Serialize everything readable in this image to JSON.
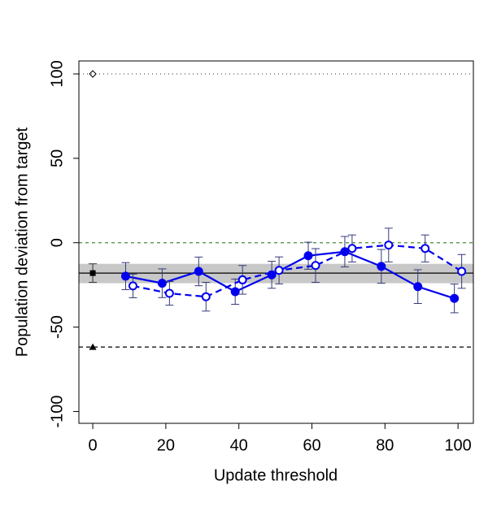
{
  "chart_data": {
    "type": "line",
    "xlabel": "Update threshold",
    "ylabel": "Population deviation from target",
    "xlim": [
      -3.8,
      104.2
    ],
    "ylim": [
      -107,
      107.7
    ],
    "xticks": [
      0,
      20,
      40,
      60,
      80,
      100
    ],
    "yticks": [
      -100,
      -50,
      0,
      50,
      100
    ],
    "series": [
      {
        "color": "#0000ee",
        "marker": "filled",
        "dash": "solid",
        "x": [
          9,
          19,
          29,
          39,
          49,
          59,
          69,
          79,
          89,
          99
        ],
        "values": [
          -19.8,
          -24,
          -17,
          -29,
          -19,
          -7.7,
          -5.3,
          -14,
          -26,
          -33
        ],
        "errors": [
          8,
          8.5,
          8.5,
          7.5,
          8,
          8,
          9,
          10,
          10,
          8.5
        ]
      },
      {
        "color": "#0000ee",
        "marker": "open",
        "dash": "dashed",
        "x": [
          11,
          21,
          31,
          41,
          51,
          61,
          71,
          81,
          91,
          101
        ],
        "values": [
          -25.6,
          -30,
          -32,
          -22,
          -16.4,
          -13.5,
          -3.4,
          -1.4,
          -3.4,
          -17
        ],
        "errors": [
          7,
          7,
          8.5,
          8.5,
          8,
          10,
          8,
          10,
          8,
          10
        ]
      }
    ],
    "band": [
      -24,
      -12.5
    ],
    "hlines": [
      {
        "value": 100,
        "color": "#555555",
        "dash": "1 4"
      },
      {
        "value": 0,
        "color": "#4a8a3a",
        "dash": "4 4"
      },
      {
        "value": -18,
        "color": "#000000",
        "dash": "none"
      },
      {
        "value": -61.8,
        "color": "#000000",
        "dash": "5 4"
      }
    ],
    "reference_points": [
      {
        "x": 0,
        "value": 100,
        "shape": "diamond"
      },
      {
        "x": 0,
        "value": -18,
        "shape": "square",
        "error": 5.5
      },
      {
        "x": 0,
        "value": -61.8,
        "shape": "triangle"
      }
    ]
  }
}
